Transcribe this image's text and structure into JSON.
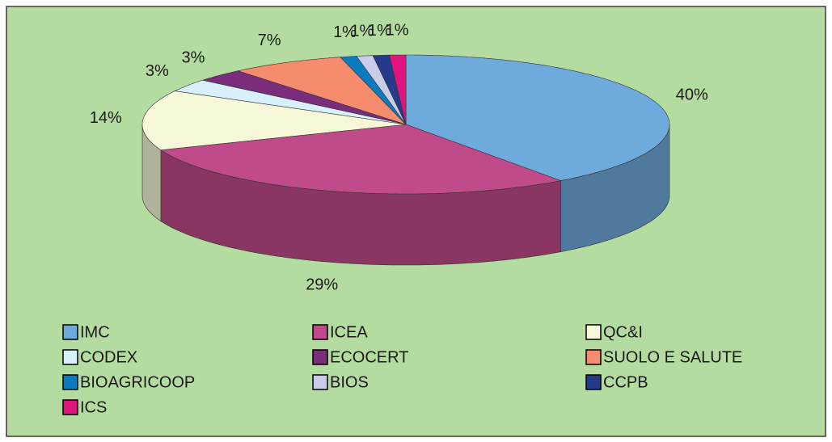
{
  "chart_data": {
    "type": "pie3d",
    "categories": [
      "IMC",
      "ICEA",
      "QC&I",
      "CODEX",
      "ECOCERT",
      "SUOLO E SALUTE",
      "BIOAGRICOOP",
      "BIOS",
      "CCPB",
      "ICS"
    ],
    "values": [
      40,
      29,
      14,
      3,
      3,
      7,
      1,
      1,
      1,
      1
    ],
    "value_labels": [
      "40%",
      "29%",
      "14%",
      "3%",
      "3%",
      "7%",
      "1%",
      "1%",
      "1%",
      "1%"
    ],
    "colors": [
      "#6eaadc",
      "#c04b8a",
      "#f6f6d8",
      "#d8f0fb",
      "#7a2d7a",
      "#f68c6e",
      "#0b7bc0",
      "#c9cdea",
      "#263a8c",
      "#e0147c"
    ],
    "legend": "bottom"
  }
}
